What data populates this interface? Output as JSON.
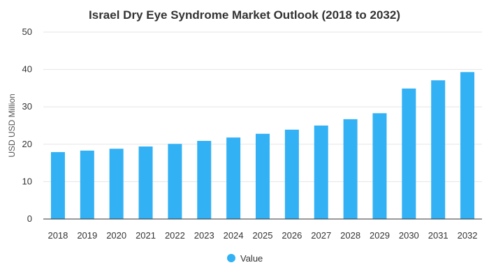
{
  "chart_data": {
    "type": "bar",
    "title": "Israel Dry Eye Syndrome Market Outlook (2018 to 2032)",
    "ylabel": "USD USD Million",
    "xlabel": "",
    "categories": [
      "2018",
      "2019",
      "2020",
      "2021",
      "2022",
      "2023",
      "2024",
      "2025",
      "2026",
      "2027",
      "2028",
      "2029",
      "2030",
      "2031",
      "2032"
    ],
    "series": [
      {
        "name": "Value",
        "color": "#33b1f5",
        "values": [
          17.9,
          18.3,
          18.8,
          19.4,
          20.1,
          20.9,
          21.8,
          22.8,
          23.9,
          25.0,
          26.7,
          28.3,
          34.9,
          37.1,
          39.3
        ]
      }
    ],
    "ylim": [
      0,
      50
    ],
    "yticks": [
      0,
      10,
      20,
      30,
      40,
      50
    ],
    "grid": true,
    "legend_position": "bottom-center"
  }
}
